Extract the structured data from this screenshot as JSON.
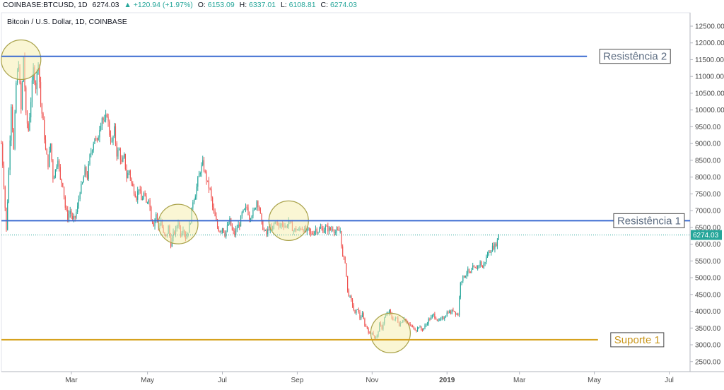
{
  "header": {
    "symbol": "COINBASE:BTCUSD, 1D",
    "last": "6274.03",
    "change": "▲ +120.94 (+1.97%)",
    "o_label": "O:",
    "o_value": "6153.09",
    "h_label": "H:",
    "h_value": "6337.01",
    "l_label": "L:",
    "l_value": "6108.81",
    "c_label": "C:",
    "c_value": "6274.03",
    "subtitle": "Bitcoin / U.S. Dollar, 1D, COINBASE"
  },
  "colors": {
    "up": "#26a69a",
    "down": "#ef5350",
    "resistance": "#3a6bd1",
    "support": "#d6a21e",
    "circle_fill": "#f5efb0",
    "circle_stroke": "#a9a24a",
    "price_line": "#26a69a"
  },
  "chart_data": {
    "type": "candlestick",
    "x_axis": {
      "ticks": [
        "Mar",
        "May",
        "Jul",
        "Sep",
        "Nov",
        "2019",
        "Mar",
        "May",
        "Jul"
      ],
      "tick_days": [
        58,
        120,
        181,
        242,
        303,
        364,
        423,
        484,
        545
      ],
      "range_days": [
        1,
        562
      ]
    },
    "y_axis": {
      "ticks": [
        12500,
        12000,
        11500,
        11000,
        10500,
        10000,
        9500,
        9000,
        8500,
        8000,
        7500,
        7000,
        6500,
        6000,
        5500,
        5000,
        4500,
        4000,
        3500,
        3000,
        2500
      ],
      "tick_labels": [
        "12500.00",
        "12000.00",
        "11500.00",
        "11000.00",
        "10500.00",
        "10000.00",
        "9500.00",
        "9000.00",
        "8500.00",
        "8000.00",
        "7500.00",
        "7000.00",
        "6500.00",
        "6000.00",
        "5500.00",
        "5000.00",
        "4500.00",
        "4000.00",
        "3500.00",
        "3000.00",
        "2500.00"
      ],
      "range": [
        2200,
        12900
      ]
    },
    "price_path": [
      [
        1,
        9000
      ],
      [
        3,
        7800
      ],
      [
        5,
        6400
      ],
      [
        7,
        8200
      ],
      [
        9,
        10200
      ],
      [
        11,
        8800
      ],
      [
        13,
        10800
      ],
      [
        15,
        11400
      ],
      [
        17,
        10000
      ],
      [
        19,
        11600
      ],
      [
        21,
        9800
      ],
      [
        23,
        9400
      ],
      [
        25,
        10300
      ],
      [
        27,
        11200
      ],
      [
        29,
        10700
      ],
      [
        31,
        11500
      ],
      [
        33,
        10200
      ],
      [
        35,
        9600
      ],
      [
        37,
        8800
      ],
      [
        39,
        8400
      ],
      [
        41,
        9000
      ],
      [
        43,
        8000
      ],
      [
        45,
        8200
      ],
      [
        47,
        8600
      ],
      [
        49,
        7900
      ],
      [
        51,
        7800
      ],
      [
        53,
        7100
      ],
      [
        55,
        6800
      ],
      [
        57,
        7000
      ],
      [
        59,
        6700
      ],
      [
        61,
        6800
      ],
      [
        63,
        7100
      ],
      [
        65,
        7600
      ],
      [
        67,
        7800
      ],
      [
        69,
        8200
      ],
      [
        71,
        8000
      ],
      [
        73,
        8600
      ],
      [
        75,
        8900
      ],
      [
        77,
        9200
      ],
      [
        79,
        9000
      ],
      [
        81,
        9500
      ],
      [
        83,
        9800
      ],
      [
        85,
        9600
      ],
      [
        87,
        9900
      ],
      [
        89,
        9300
      ],
      [
        91,
        9000
      ],
      [
        93,
        9400
      ],
      [
        95,
        8700
      ],
      [
        97,
        8800
      ],
      [
        99,
        8400
      ],
      [
        101,
        8600
      ],
      [
        103,
        8000
      ],
      [
        105,
        8200
      ],
      [
        107,
        7800
      ],
      [
        109,
        7600
      ],
      [
        111,
        7400
      ],
      [
        113,
        7700
      ],
      [
        115,
        7300
      ],
      [
        117,
        7500
      ],
      [
        119,
        7200
      ],
      [
        121,
        7400
      ],
      [
        123,
        6800
      ],
      [
        125,
        6600
      ],
      [
        127,
        6900
      ],
      [
        129,
        6500
      ],
      [
        131,
        6700
      ],
      [
        133,
        6300
      ],
      [
        135,
        6200
      ],
      [
        137,
        6500
      ],
      [
        139,
        6000
      ],
      [
        141,
        6300
      ],
      [
        143,
        6400
      ],
      [
        145,
        6700
      ],
      [
        147,
        6300
      ],
      [
        149,
        6500
      ],
      [
        151,
        6200
      ],
      [
        153,
        6400
      ],
      [
        155,
        6700
      ],
      [
        157,
        7300
      ],
      [
        159,
        7500
      ],
      [
        161,
        7900
      ],
      [
        163,
        8200
      ],
      [
        165,
        8400
      ],
      [
        167,
        8100
      ],
      [
        169,
        7800
      ],
      [
        171,
        7600
      ],
      [
        173,
        7100
      ],
      [
        175,
        6800
      ],
      [
        177,
        6500
      ],
      [
        179,
        6400
      ],
      [
        181,
        6500
      ],
      [
        183,
        6300
      ],
      [
        185,
        6500
      ],
      [
        187,
        6700
      ],
      [
        189,
        6400
      ],
      [
        191,
        6300
      ],
      [
        193,
        6500
      ],
      [
        195,
        6600
      ],
      [
        197,
        6900
      ],
      [
        199,
        7000
      ],
      [
        201,
        7100
      ],
      [
        203,
        6800
      ],
      [
        205,
        6900
      ],
      [
        207,
        7000
      ],
      [
        209,
        7300
      ],
      [
        211,
        7100
      ],
      [
        213,
        6600
      ],
      [
        215,
        6400
      ],
      [
        217,
        6300
      ],
      [
        219,
        6500
      ],
      [
        221,
        6400
      ],
      [
        223,
        6600
      ],
      [
        225,
        6700
      ],
      [
        227,
        6500
      ],
      [
        229,
        6600
      ],
      [
        231,
        6600
      ],
      [
        233,
        6500
      ],
      [
        235,
        6700
      ],
      [
        237,
        6550
      ],
      [
        239,
        6400
      ],
      [
        241,
        6450
      ],
      [
        243,
        6400
      ],
      [
        245,
        6500
      ],
      [
        247,
        6450
      ],
      [
        249,
        6380
      ],
      [
        251,
        6420
      ],
      [
        253,
        6300
      ],
      [
        255,
        6350
      ],
      [
        257,
        6450
      ],
      [
        259,
        6400
      ],
      [
        261,
        6480
      ],
      [
        263,
        6420
      ],
      [
        265,
        6500
      ],
      [
        267,
        6450
      ],
      [
        269,
        6430
      ],
      [
        271,
        6480
      ],
      [
        273,
        6350
      ],
      [
        275,
        6380
      ],
      [
        277,
        6400
      ],
      [
        279,
        5600
      ],
      [
        281,
        5500
      ],
      [
        283,
        4600
      ],
      [
        285,
        4400
      ],
      [
        287,
        4200
      ],
      [
        289,
        3900
      ],
      [
        291,
        4100
      ],
      [
        293,
        3800
      ],
      [
        295,
        3900
      ],
      [
        297,
        3600
      ],
      [
        299,
        3500
      ],
      [
        301,
        3300
      ],
      [
        303,
        3400
      ],
      [
        305,
        3200
      ],
      [
        307,
        3250
      ],
      [
        309,
        3600
      ],
      [
        311,
        3500
      ],
      [
        313,
        3800
      ],
      [
        315,
        3900
      ],
      [
        317,
        4000
      ],
      [
        319,
        3800
      ],
      [
        321,
        3750
      ],
      [
        323,
        3800
      ],
      [
        325,
        3600
      ],
      [
        327,
        3700
      ],
      [
        329,
        3800
      ],
      [
        331,
        3650
      ],
      [
        333,
        3600
      ],
      [
        335,
        3550
      ],
      [
        337,
        3500
      ],
      [
        339,
        3450
      ],
      [
        341,
        3550
      ],
      [
        343,
        3450
      ],
      [
        345,
        3500
      ],
      [
        347,
        3600
      ],
      [
        349,
        3750
      ],
      [
        351,
        3800
      ],
      [
        353,
        3900
      ],
      [
        355,
        3800
      ],
      [
        357,
        3700
      ],
      [
        359,
        3750
      ],
      [
        361,
        3800
      ],
      [
        363,
        3900
      ],
      [
        365,
        4000
      ],
      [
        367,
        3950
      ],
      [
        369,
        4050
      ],
      [
        371,
        3950
      ],
      [
        373,
        3900
      ],
      [
        375,
        4900
      ],
      [
        377,
        5000
      ],
      [
        379,
        5100
      ],
      [
        381,
        5200
      ],
      [
        383,
        5100
      ],
      [
        385,
        5300
      ],
      [
        387,
        5250
      ],
      [
        389,
        5350
      ],
      [
        391,
        5450
      ],
      [
        393,
        5300
      ],
      [
        395,
        5500
      ],
      [
        397,
        5700
      ],
      [
        399,
        5800
      ],
      [
        401,
        5900
      ],
      [
        403,
        5950
      ],
      [
        405,
        6100
      ],
      [
        406,
        6274
      ]
    ],
    "candle_x_days": [
      1,
      406
    ],
    "lines": [
      {
        "name": "Resistência 2",
        "value": 11600,
        "color_key": "resistance",
        "x_end_days": 478,
        "label_pos": "right"
      },
      {
        "name": "Resistência 1",
        "value": 6700,
        "color_key": "resistance",
        "x_end_days": 562,
        "label_pos": "right"
      },
      {
        "name": "Suporte 1",
        "value": 3150,
        "color_key": "support",
        "x_end_days": 487,
        "label_pos": "right"
      }
    ],
    "circles": [
      {
        "day": 17,
        "value": 11500
      },
      {
        "day": 145,
        "value": 6600
      },
      {
        "day": 235,
        "value": 6700
      },
      {
        "day": 318,
        "value": 3350
      }
    ],
    "last_price": 6274.03,
    "last_price_label": "6274.03"
  }
}
